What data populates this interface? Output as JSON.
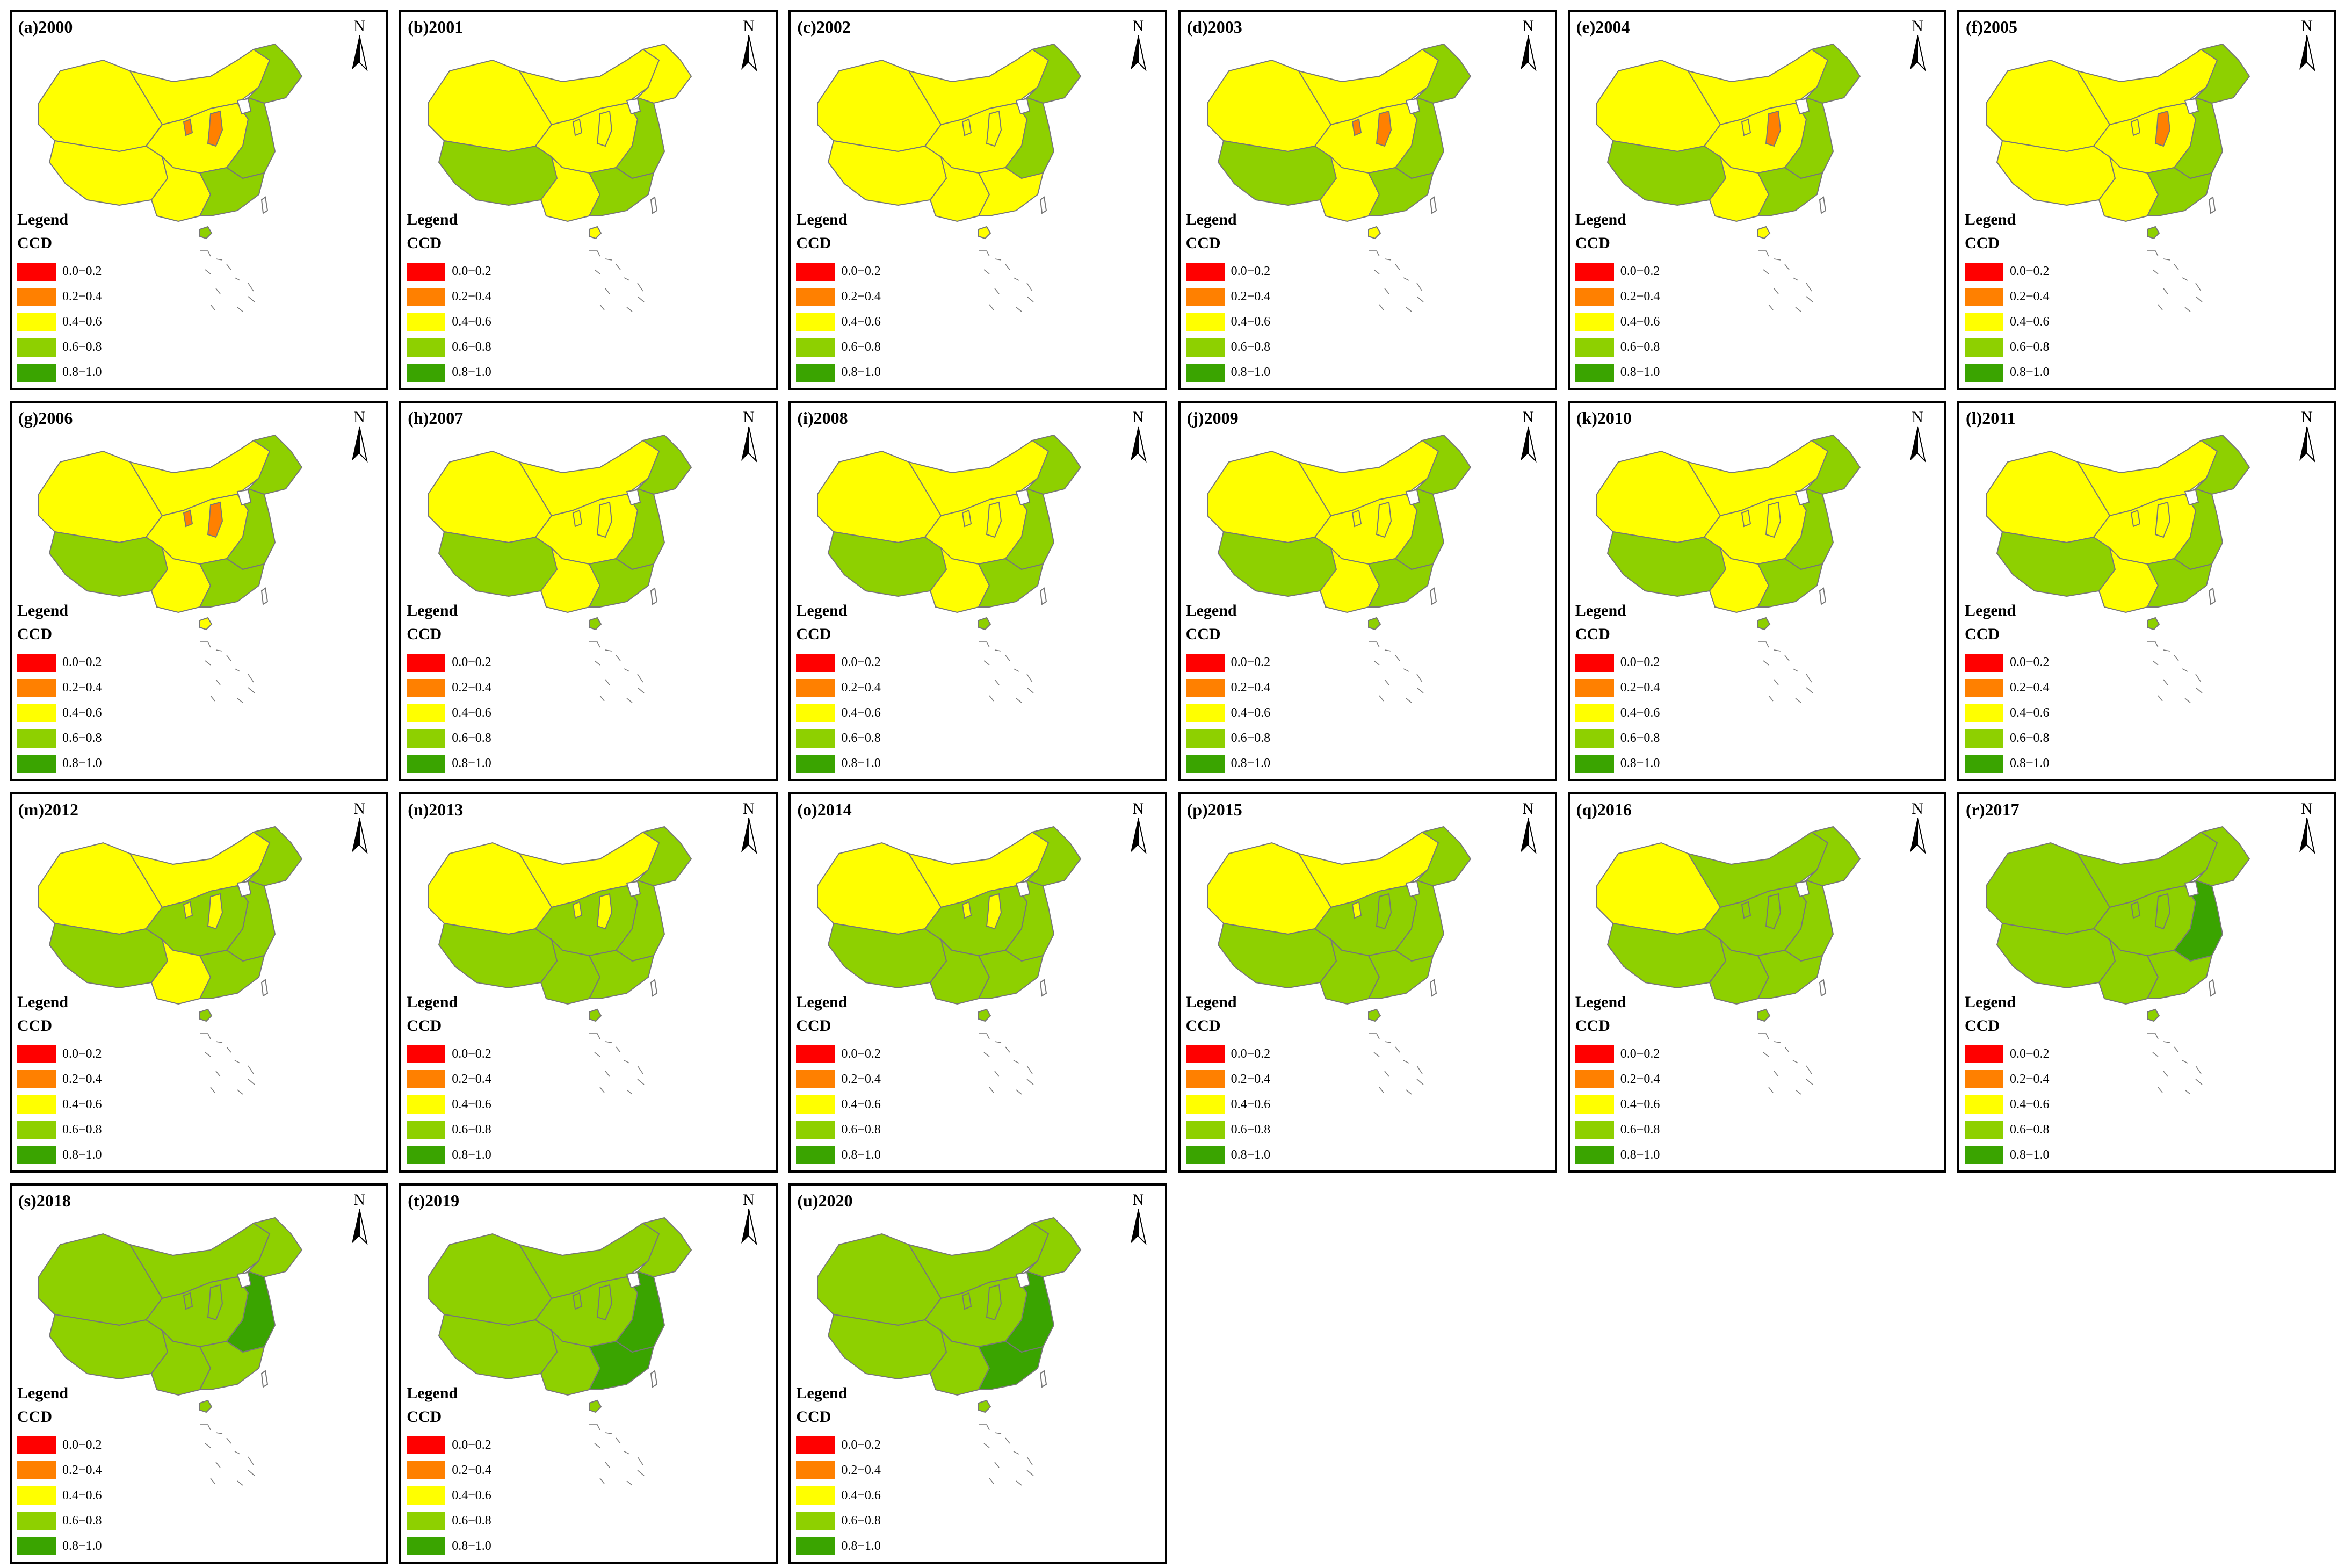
{
  "legend": {
    "title": "Legend",
    "subtitle": "CCD",
    "classes": [
      {
        "label": "0.0−0.2",
        "color": "#ff0000"
      },
      {
        "label": "0.2−0.4",
        "color": "#ff8000"
      },
      {
        "label": "0.4−0.6",
        "color": "#ffff00"
      },
      {
        "label": "0.6−0.8",
        "color": "#8ed000"
      },
      {
        "label": "0.8−1.0",
        "color": "#3aa400"
      }
    ]
  },
  "north_label": "N",
  "panels": [
    {
      "title": "(a)2000",
      "classes": {
        "west": 2,
        "tibet": 2,
        "north": 2,
        "northeast": 3,
        "central": 2,
        "east": 3,
        "south": 2,
        "southeast": 3,
        "hainan": 3,
        "shanxi": 1,
        "ningxia": 1
      }
    },
    {
      "title": "(b)2001",
      "classes": {
        "west": 2,
        "tibet": 3,
        "north": 2,
        "northeast": 2,
        "central": 2,
        "east": 3,
        "south": 2,
        "southeast": 3,
        "hainan": 2,
        "shanxi": 2,
        "ningxia": 2
      }
    },
    {
      "title": "(c)2002",
      "classes": {
        "west": 2,
        "tibet": 2,
        "north": 2,
        "northeast": 3,
        "central": 2,
        "east": 3,
        "south": 2,
        "southeast": 2,
        "hainan": 2,
        "shanxi": 2,
        "ningxia": 2
      }
    },
    {
      "title": "(d)2003",
      "classes": {
        "west": 2,
        "tibet": 3,
        "north": 2,
        "northeast": 3,
        "central": 2,
        "east": 3,
        "south": 2,
        "southeast": 3,
        "hainan": 2,
        "shanxi": 1,
        "ningxia": 1
      }
    },
    {
      "title": "(e)2004",
      "classes": {
        "west": 2,
        "tibet": 3,
        "north": 2,
        "northeast": 3,
        "central": 2,
        "east": 3,
        "south": 2,
        "southeast": 3,
        "hainan": 2,
        "shanxi": 1,
        "ningxia": 2
      }
    },
    {
      "title": "(f)2005",
      "classes": {
        "west": 2,
        "tibet": 2,
        "north": 2,
        "northeast": 3,
        "central": 2,
        "east": 3,
        "south": 2,
        "southeast": 3,
        "hainan": 3,
        "shanxi": 1,
        "ningxia": 2
      }
    },
    {
      "title": "(g)2006",
      "classes": {
        "west": 2,
        "tibet": 3,
        "north": 2,
        "northeast": 3,
        "central": 2,
        "east": 3,
        "south": 2,
        "southeast": 3,
        "hainan": 2,
        "shanxi": 1,
        "ningxia": 1
      }
    },
    {
      "title": "(h)2007",
      "classes": {
        "west": 2,
        "tibet": 3,
        "north": 2,
        "northeast": 3,
        "central": 2,
        "east": 3,
        "south": 2,
        "southeast": 3,
        "hainan": 3,
        "shanxi": 2,
        "ningxia": 2
      }
    },
    {
      "title": "(i)2008",
      "classes": {
        "west": 2,
        "tibet": 3,
        "north": 2,
        "northeast": 3,
        "central": 2,
        "east": 3,
        "south": 2,
        "southeast": 3,
        "hainan": 3,
        "shanxi": 2,
        "ningxia": 2
      }
    },
    {
      "title": "(j)2009",
      "classes": {
        "west": 2,
        "tibet": 3,
        "north": 2,
        "northeast": 3,
        "central": 2,
        "east": 3,
        "south": 2,
        "southeast": 3,
        "hainan": 3,
        "shanxi": 2,
        "ningxia": 2
      }
    },
    {
      "title": "(k)2010",
      "classes": {
        "west": 2,
        "tibet": 3,
        "north": 2,
        "northeast": 3,
        "central": 2,
        "east": 3,
        "south": 2,
        "southeast": 3,
        "hainan": 3,
        "shanxi": 2,
        "ningxia": 2
      }
    },
    {
      "title": "(l)2011",
      "classes": {
        "west": 2,
        "tibet": 3,
        "north": 2,
        "northeast": 3,
        "central": 2,
        "east": 3,
        "south": 2,
        "southeast": 3,
        "hainan": 3,
        "shanxi": 2,
        "ningxia": 2
      }
    },
    {
      "title": "(m)2012",
      "classes": {
        "west": 2,
        "tibet": 3,
        "north": 2,
        "northeast": 3,
        "central": 3,
        "east": 3,
        "south": 2,
        "southeast": 3,
        "hainan": 3,
        "shanxi": 2,
        "ningxia": 2
      }
    },
    {
      "title": "(n)2013",
      "classes": {
        "west": 2,
        "tibet": 3,
        "north": 2,
        "northeast": 3,
        "central": 3,
        "east": 3,
        "south": 3,
        "southeast": 3,
        "hainan": 3,
        "shanxi": 2,
        "ningxia": 2
      }
    },
    {
      "title": "(o)2014",
      "classes": {
        "west": 2,
        "tibet": 3,
        "north": 2,
        "northeast": 3,
        "central": 3,
        "east": 3,
        "south": 3,
        "southeast": 3,
        "hainan": 3,
        "shanxi": 2,
        "ningxia": 2
      }
    },
    {
      "title": "(p)2015",
      "classes": {
        "west": 2,
        "tibet": 3,
        "north": 2,
        "northeast": 3,
        "central": 3,
        "east": 3,
        "south": 3,
        "southeast": 3,
        "hainan": 3,
        "shanxi": 3,
        "ningxia": 2
      }
    },
    {
      "title": "(q)2016",
      "classes": {
        "west": 2,
        "tibet": 3,
        "north": 3,
        "northeast": 3,
        "central": 3,
        "east": 3,
        "south": 3,
        "southeast": 3,
        "hainan": 3,
        "shanxi": 3,
        "ningxia": 3
      }
    },
    {
      "title": "(r)2017",
      "classes": {
        "west": 3,
        "tibet": 3,
        "north": 3,
        "northeast": 3,
        "central": 3,
        "east": 4,
        "south": 3,
        "southeast": 3,
        "hainan": 3,
        "shanxi": 3,
        "ningxia": 3
      }
    },
    {
      "title": "(s)2018",
      "classes": {
        "west": 3,
        "tibet": 3,
        "north": 3,
        "northeast": 3,
        "central": 3,
        "east": 4,
        "south": 3,
        "southeast": 3,
        "hainan": 3,
        "shanxi": 3,
        "ningxia": 3
      }
    },
    {
      "title": "(t)2019",
      "classes": {
        "west": 3,
        "tibet": 3,
        "north": 3,
        "northeast": 3,
        "central": 3,
        "east": 4,
        "south": 3,
        "southeast": 4,
        "hainan": 3,
        "shanxi": 3,
        "ningxia": 3
      }
    },
    {
      "title": "(u)2020",
      "classes": {
        "west": 3,
        "tibet": 3,
        "north": 3,
        "northeast": 3,
        "central": 3,
        "east": 4,
        "south": 3,
        "southeast": 4,
        "hainan": 3,
        "shanxi": 3,
        "ningxia": 3
      }
    }
  ]
}
